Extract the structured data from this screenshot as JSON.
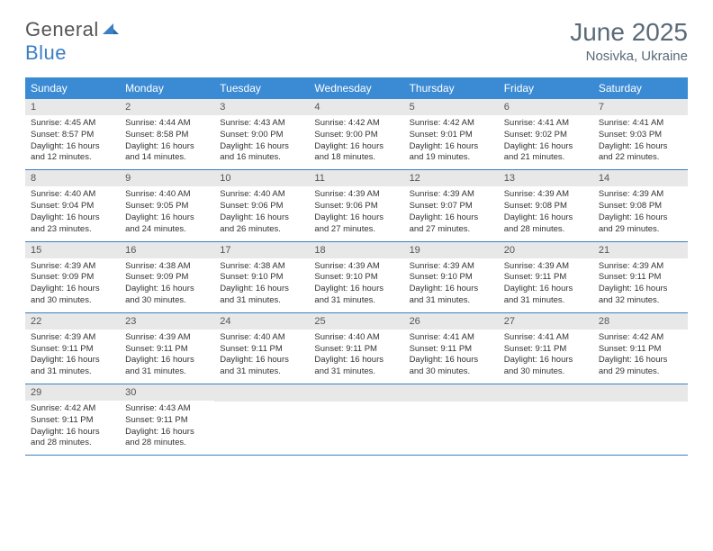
{
  "brand": {
    "part1": "General",
    "part2": "Blue"
  },
  "title": "June 2025",
  "location": "Nosivka, Ukraine",
  "colors": {
    "header_bg": "#3b8bd4",
    "border": "#3b7fc4",
    "daynum_bg": "#e8e8e8",
    "text": "#333333",
    "title": "#5a6a78"
  },
  "weekdays": [
    "Sunday",
    "Monday",
    "Tuesday",
    "Wednesday",
    "Thursday",
    "Friday",
    "Saturday"
  ],
  "weeks": [
    [
      {
        "n": "1",
        "sr": "Sunrise: 4:45 AM",
        "ss": "Sunset: 8:57 PM",
        "dl": "Daylight: 16 hours and 12 minutes."
      },
      {
        "n": "2",
        "sr": "Sunrise: 4:44 AM",
        "ss": "Sunset: 8:58 PM",
        "dl": "Daylight: 16 hours and 14 minutes."
      },
      {
        "n": "3",
        "sr": "Sunrise: 4:43 AM",
        "ss": "Sunset: 9:00 PM",
        "dl": "Daylight: 16 hours and 16 minutes."
      },
      {
        "n": "4",
        "sr": "Sunrise: 4:42 AM",
        "ss": "Sunset: 9:00 PM",
        "dl": "Daylight: 16 hours and 18 minutes."
      },
      {
        "n": "5",
        "sr": "Sunrise: 4:42 AM",
        "ss": "Sunset: 9:01 PM",
        "dl": "Daylight: 16 hours and 19 minutes."
      },
      {
        "n": "6",
        "sr": "Sunrise: 4:41 AM",
        "ss": "Sunset: 9:02 PM",
        "dl": "Daylight: 16 hours and 21 minutes."
      },
      {
        "n": "7",
        "sr": "Sunrise: 4:41 AM",
        "ss": "Sunset: 9:03 PM",
        "dl": "Daylight: 16 hours and 22 minutes."
      }
    ],
    [
      {
        "n": "8",
        "sr": "Sunrise: 4:40 AM",
        "ss": "Sunset: 9:04 PM",
        "dl": "Daylight: 16 hours and 23 minutes."
      },
      {
        "n": "9",
        "sr": "Sunrise: 4:40 AM",
        "ss": "Sunset: 9:05 PM",
        "dl": "Daylight: 16 hours and 24 minutes."
      },
      {
        "n": "10",
        "sr": "Sunrise: 4:40 AM",
        "ss": "Sunset: 9:06 PM",
        "dl": "Daylight: 16 hours and 26 minutes."
      },
      {
        "n": "11",
        "sr": "Sunrise: 4:39 AM",
        "ss": "Sunset: 9:06 PM",
        "dl": "Daylight: 16 hours and 27 minutes."
      },
      {
        "n": "12",
        "sr": "Sunrise: 4:39 AM",
        "ss": "Sunset: 9:07 PM",
        "dl": "Daylight: 16 hours and 27 minutes."
      },
      {
        "n": "13",
        "sr": "Sunrise: 4:39 AM",
        "ss": "Sunset: 9:08 PM",
        "dl": "Daylight: 16 hours and 28 minutes."
      },
      {
        "n": "14",
        "sr": "Sunrise: 4:39 AM",
        "ss": "Sunset: 9:08 PM",
        "dl": "Daylight: 16 hours and 29 minutes."
      }
    ],
    [
      {
        "n": "15",
        "sr": "Sunrise: 4:39 AM",
        "ss": "Sunset: 9:09 PM",
        "dl": "Daylight: 16 hours and 30 minutes."
      },
      {
        "n": "16",
        "sr": "Sunrise: 4:38 AM",
        "ss": "Sunset: 9:09 PM",
        "dl": "Daylight: 16 hours and 30 minutes."
      },
      {
        "n": "17",
        "sr": "Sunrise: 4:38 AM",
        "ss": "Sunset: 9:10 PM",
        "dl": "Daylight: 16 hours and 31 minutes."
      },
      {
        "n": "18",
        "sr": "Sunrise: 4:39 AM",
        "ss": "Sunset: 9:10 PM",
        "dl": "Daylight: 16 hours and 31 minutes."
      },
      {
        "n": "19",
        "sr": "Sunrise: 4:39 AM",
        "ss": "Sunset: 9:10 PM",
        "dl": "Daylight: 16 hours and 31 minutes."
      },
      {
        "n": "20",
        "sr": "Sunrise: 4:39 AM",
        "ss": "Sunset: 9:11 PM",
        "dl": "Daylight: 16 hours and 31 minutes."
      },
      {
        "n": "21",
        "sr": "Sunrise: 4:39 AM",
        "ss": "Sunset: 9:11 PM",
        "dl": "Daylight: 16 hours and 32 minutes."
      }
    ],
    [
      {
        "n": "22",
        "sr": "Sunrise: 4:39 AM",
        "ss": "Sunset: 9:11 PM",
        "dl": "Daylight: 16 hours and 31 minutes."
      },
      {
        "n": "23",
        "sr": "Sunrise: 4:39 AM",
        "ss": "Sunset: 9:11 PM",
        "dl": "Daylight: 16 hours and 31 minutes."
      },
      {
        "n": "24",
        "sr": "Sunrise: 4:40 AM",
        "ss": "Sunset: 9:11 PM",
        "dl": "Daylight: 16 hours and 31 minutes."
      },
      {
        "n": "25",
        "sr": "Sunrise: 4:40 AM",
        "ss": "Sunset: 9:11 PM",
        "dl": "Daylight: 16 hours and 31 minutes."
      },
      {
        "n": "26",
        "sr": "Sunrise: 4:41 AM",
        "ss": "Sunset: 9:11 PM",
        "dl": "Daylight: 16 hours and 30 minutes."
      },
      {
        "n": "27",
        "sr": "Sunrise: 4:41 AM",
        "ss": "Sunset: 9:11 PM",
        "dl": "Daylight: 16 hours and 30 minutes."
      },
      {
        "n": "28",
        "sr": "Sunrise: 4:42 AM",
        "ss": "Sunset: 9:11 PM",
        "dl": "Daylight: 16 hours and 29 minutes."
      }
    ],
    [
      {
        "n": "29",
        "sr": "Sunrise: 4:42 AM",
        "ss": "Sunset: 9:11 PM",
        "dl": "Daylight: 16 hours and 28 minutes."
      },
      {
        "n": "30",
        "sr": "Sunrise: 4:43 AM",
        "ss": "Sunset: 9:11 PM",
        "dl": "Daylight: 16 hours and 28 minutes."
      },
      null,
      null,
      null,
      null,
      null
    ]
  ]
}
